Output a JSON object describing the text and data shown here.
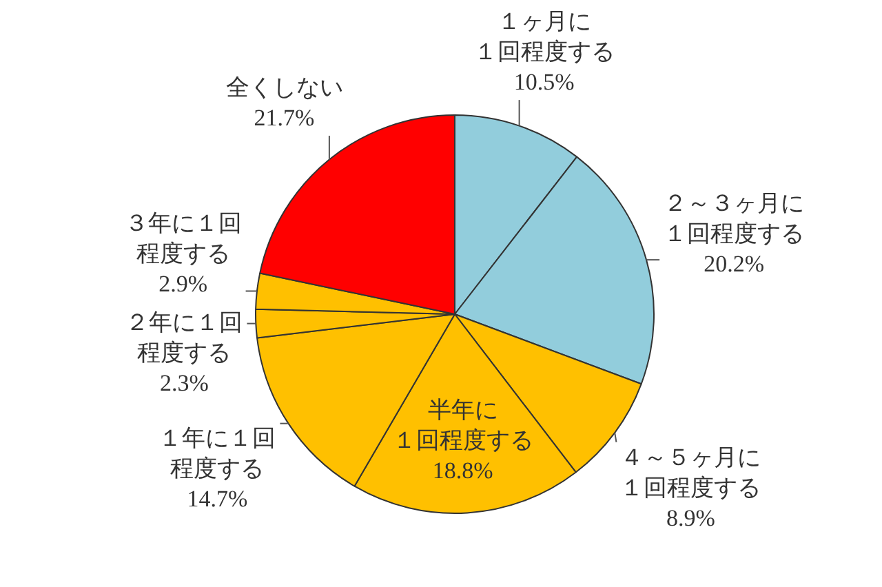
{
  "chart_data": {
    "type": "pie",
    "categories": [
      "１ヶ月に１回程度する",
      "２～３ヶ月に１回程度する",
      "４～５ヶ月に１回程度する",
      "半年に１回程度する",
      "１年に１回程度する",
      "２年に１回程度する",
      "３年に１回程度する",
      "全くしない"
    ],
    "values": [
      10.5,
      20.2,
      8.9,
      18.8,
      14.7,
      2.3,
      2.9,
      21.7
    ],
    "colors": [
      "#92cddc",
      "#92cddc",
      "#ffc000",
      "#ffc000",
      "#ffc000",
      "#ffc000",
      "#ffc000",
      "#ff0000"
    ],
    "value_labels": [
      "10.5%",
      "20.2%",
      "8.9%",
      "18.8%",
      "14.7%",
      "2.3%",
      "2.9%",
      "21.7%"
    ]
  }
}
